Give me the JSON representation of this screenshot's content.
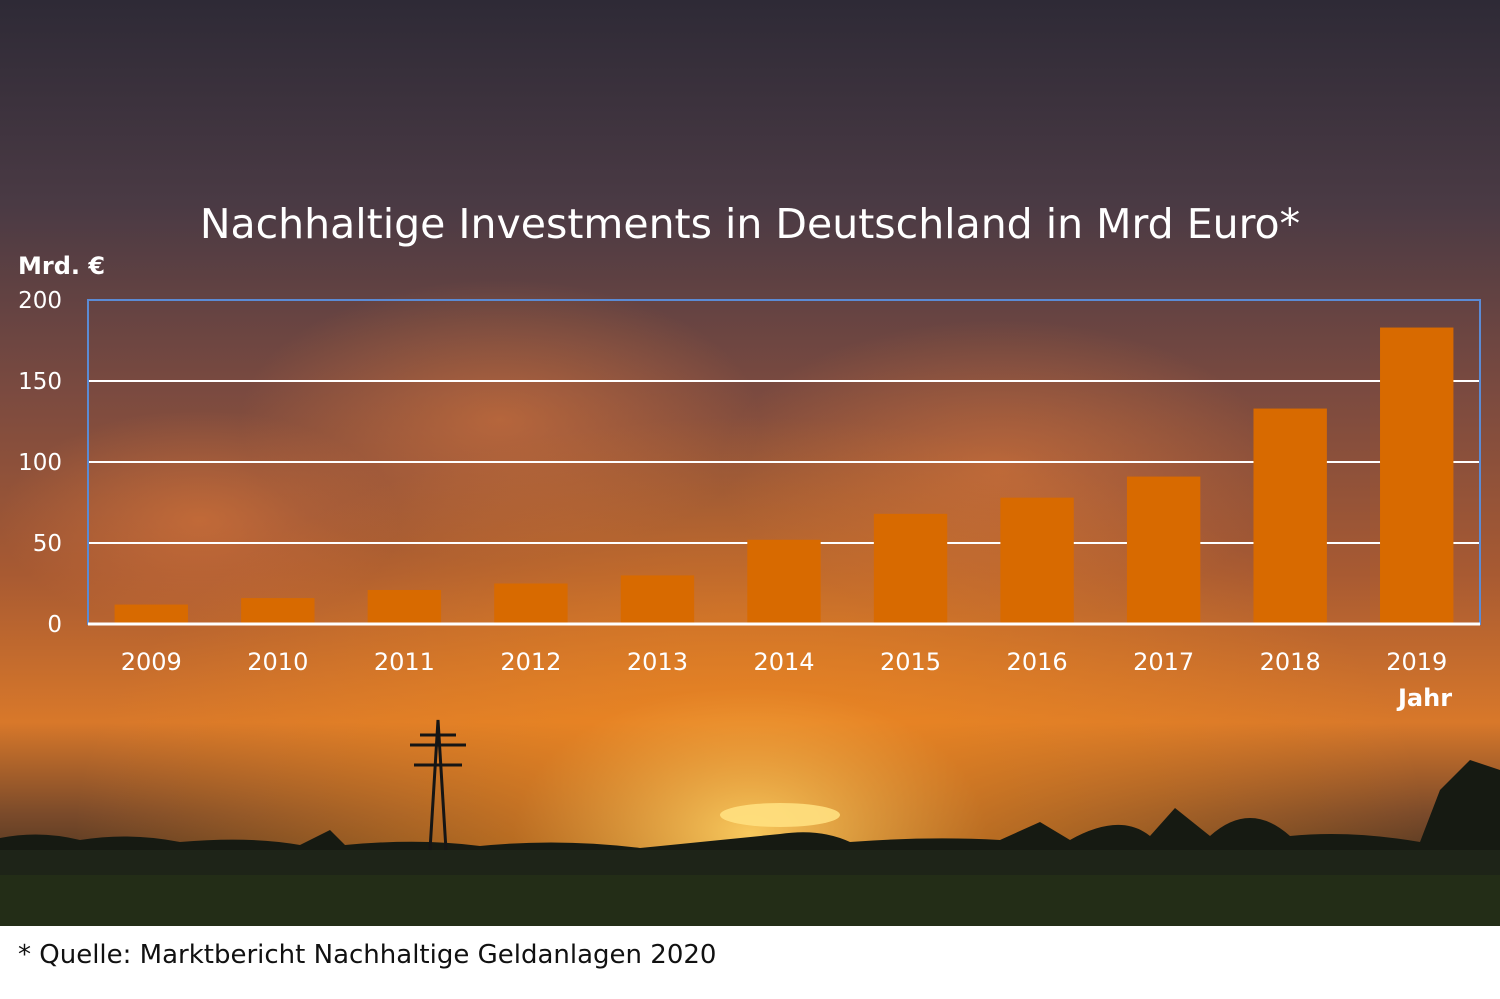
{
  "colors": {
    "bar": "#d86a00",
    "gridline": "#ffffff",
    "plot_border": "#5b8bd4",
    "text": "#ffffff"
  },
  "chart_data": {
    "type": "bar",
    "title": "Nachhaltige Investments in Deutschland in Mrd Euro*",
    "ylabel": "Mrd. €",
    "xlabel": "Jahr",
    "categories": [
      "2009",
      "2010",
      "2011",
      "2012",
      "2013",
      "2014",
      "2015",
      "2016",
      "2017",
      "2018",
      "2019"
    ],
    "values": [
      12,
      16,
      21,
      25,
      30,
      52,
      68,
      78,
      91,
      133,
      183
    ],
    "ylim": [
      0,
      200
    ],
    "yticks": [
      0,
      50,
      100,
      150,
      200
    ],
    "grid": true,
    "legend": "none"
  },
  "footnote": "* Quelle: Marktbericht Nachhaltige Geldanlagen 2020"
}
